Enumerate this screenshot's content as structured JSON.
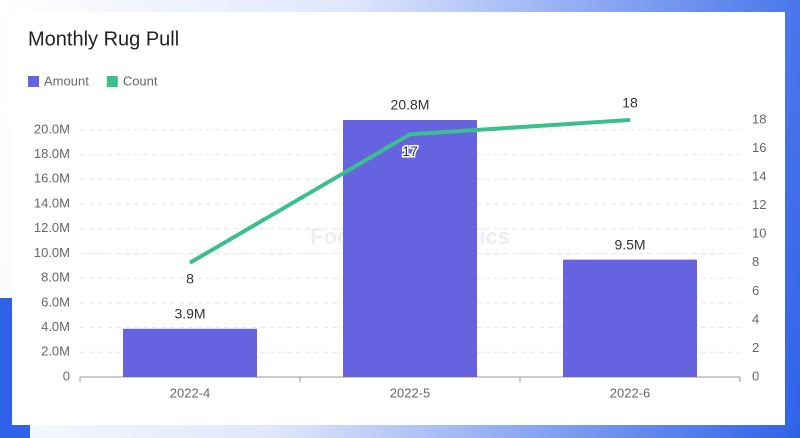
{
  "chart_data": {
    "type": "bar-line",
    "title": "Monthly Rug Pull",
    "watermark": "Footprint Analytics",
    "categories": [
      "2022-4",
      "2022-5",
      "2022-6"
    ],
    "series": [
      {
        "name": "Amount",
        "type": "bar",
        "color": "#6563e0",
        "values": [
          3900000,
          20800000,
          9500000
        ],
        "value_labels": [
          "3.9M",
          "20.8M",
          "9.5M"
        ]
      },
      {
        "name": "Count",
        "type": "line",
        "axis": "y2",
        "color": "#3dbf8c",
        "values": [
          8,
          17,
          18
        ]
      }
    ],
    "ylim": [
      0,
      20800000
    ],
    "yticks": [
      0,
      {
        "value": 2000000,
        "label": "2.0M"
      },
      {
        "value": 4000000,
        "label": "4.0M"
      },
      {
        "value": 6000000,
        "label": "6.0M"
      },
      {
        "value": 8000000,
        "label": "8.0M"
      },
      {
        "value": 10000000,
        "label": "10.0M"
      },
      {
        "value": 12000000,
        "label": "12.0M"
      },
      {
        "value": 14000000,
        "label": "14.0M"
      },
      {
        "value": 16000000,
        "label": "16.0M"
      },
      {
        "value": 18000000,
        "label": "18.0M"
      },
      {
        "value": 20000000,
        "label": "20.0M"
      }
    ],
    "y2lim": [
      0,
      18
    ],
    "y2ticks": [
      0,
      2,
      4,
      6,
      8,
      10,
      12,
      14,
      16,
      18
    ],
    "grid": true,
    "legend": "top-left"
  }
}
